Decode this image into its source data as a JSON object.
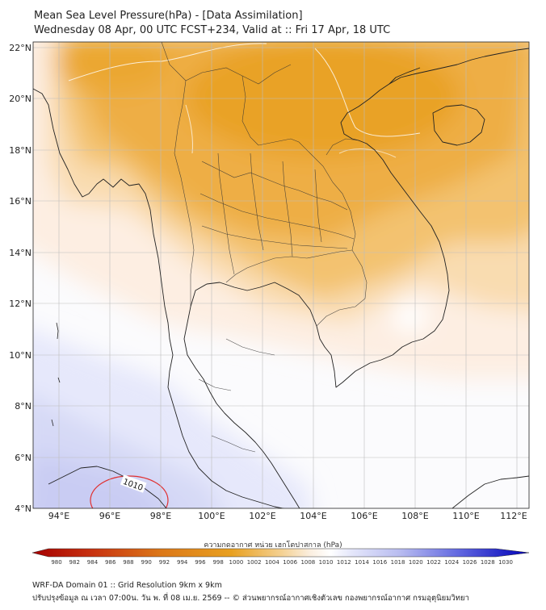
{
  "header": {
    "title": "Mean Sea Level Pressure(hPa) - [Data Assimilation]",
    "subtitle": "Wednesday 08 Apr, 00 UTC FCST+234, Valid at :: Fri 17 Apr, 18 UTC"
  },
  "axes": {
    "lon_labels": [
      "94°E",
      "96°E",
      "98°E",
      "100°E",
      "102°E",
      "104°E",
      "106°E",
      "108°E",
      "110°E",
      "112°E"
    ],
    "lat_labels": [
      "22°N",
      "20°N",
      "18°N",
      "16°N",
      "14°N",
      "12°N",
      "10°N",
      "8°N",
      "6°N",
      "4°N"
    ]
  },
  "contour_label": "1010",
  "colorbar": {
    "title": "ความกดอากาศ หน่วย เฮกโตปาสกาล (hPa)",
    "ticks": [
      "980",
      "982",
      "984",
      "986",
      "988",
      "990",
      "992",
      "994",
      "996",
      "998",
      "1000",
      "1002",
      "1004",
      "1006",
      "1008",
      "1010",
      "1012",
      "1014",
      "1016",
      "1018",
      "1020",
      "1022",
      "1024",
      "1026",
      "1028",
      "1030"
    ]
  },
  "footer": {
    "line1": "WRF-DA Domain 01 :: Grid Resolution 9km x 9km",
    "line2": "ปรับปรุงข้อมูล ณ เวลา 07:00น. วัน พ. ที่ 08 เม.ย. 2569 -- © ส่วนพยากรณ์อากาศเชิงตัวเลข กองพยากรณ์อากาศ กรมอุตุนิยมวิทยา"
  },
  "colors": {
    "max_orange": "#e8a020",
    "mid_orange": "#f4c870",
    "light": "#fdf1e4",
    "neutral": "#fbfbfd",
    "light_blue": "#e4e6fb",
    "mid_blue": "#cdd0f4"
  }
}
